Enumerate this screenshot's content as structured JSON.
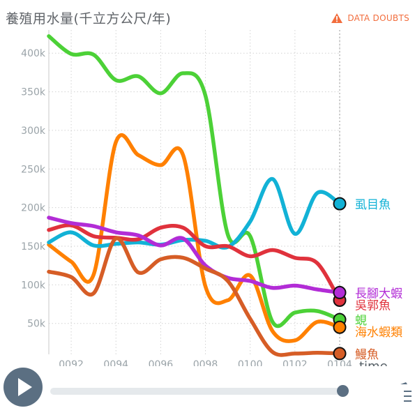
{
  "title": "養殖用水量(千立方公尺/年)",
  "data_doubts": {
    "label": "DATA DOUBTS",
    "icon": "warning-triangle-icon"
  },
  "colors": {
    "axis_text": "#9aa3a8",
    "grid": "#d2d2d2",
    "warning": "#f26d3d",
    "control": "#5b6f82"
  },
  "chart_data": {
    "type": "line",
    "xlabel": "time",
    "ylabel": "",
    "x": [
      91,
      92,
      93,
      94,
      95,
      96,
      97,
      98,
      99,
      100,
      101,
      102,
      103,
      104
    ],
    "x_ticks": [
      {
        "value": 92,
        "label": "0092"
      },
      {
        "value": 94,
        "label": "0094"
      },
      {
        "value": 96,
        "label": "0096"
      },
      {
        "value": 98,
        "label": "0098"
      },
      {
        "value": 100,
        "label": "0100"
      },
      {
        "value": 102,
        "label": "0102"
      },
      {
        "value": 104,
        "label": "0104"
      }
    ],
    "xlim": [
      91,
      104
    ],
    "y_ticks": [
      {
        "value": 50000,
        "label": "50k"
      },
      {
        "value": 100000,
        "label": "100k"
      },
      {
        "value": 150000,
        "label": "150k"
      },
      {
        "value": 200000,
        "label": "200k"
      },
      {
        "value": 250000,
        "label": "250k"
      },
      {
        "value": 300000,
        "label": "300k"
      },
      {
        "value": 350000,
        "label": "350k"
      },
      {
        "value": 400000,
        "label": "400k"
      }
    ],
    "ylim": [
      10000,
      430000
    ],
    "grid": true,
    "series": [
      {
        "name": "蜆",
        "color": "#4cd137",
        "values": [
          422000,
          399000,
          398000,
          365000,
          370000,
          348000,
          374000,
          345000,
          165000,
          163000,
          52000,
          64000,
          66000,
          55000
        ]
      },
      {
        "name": "海水蝦類",
        "color": "#ff8000",
        "values": [
          152000,
          130000,
          113000,
          285000,
          268000,
          255000,
          268000,
          98000,
          80000,
          112000,
          40000,
          28000,
          52000,
          45000
        ]
      },
      {
        "name": "虱目魚",
        "color": "#12b2d6",
        "values": [
          155000,
          168000,
          151000,
          153000,
          155000,
          152000,
          158000,
          157000,
          149000,
          182000,
          237000,
          166000,
          219000,
          205000
        ]
      },
      {
        "name": "吳郭魚",
        "color": "#e0323c",
        "values": [
          171000,
          177000,
          163000,
          161000,
          159000,
          174000,
          174000,
          150000,
          150000,
          137000,
          145000,
          135000,
          128000,
          80000
        ]
      },
      {
        "name": "長腳大蝦",
        "color": "#b22cd6",
        "values": [
          187000,
          180000,
          176000,
          168000,
          164000,
          151000,
          160000,
          125000,
          109000,
          105000,
          96000,
          99000,
          94000,
          90000
        ]
      },
      {
        "name": "鰻魚",
        "color": "#d65d26",
        "values": [
          117000,
          110000,
          89000,
          160000,
          116000,
          133000,
          135000,
          121000,
          105000,
          56000,
          13000,
          11000,
          12000,
          11000
        ]
      }
    ]
  },
  "controls": {
    "play_icon": "play-icon",
    "slider_value": 104,
    "menu_icon": "menu-icon"
  }
}
